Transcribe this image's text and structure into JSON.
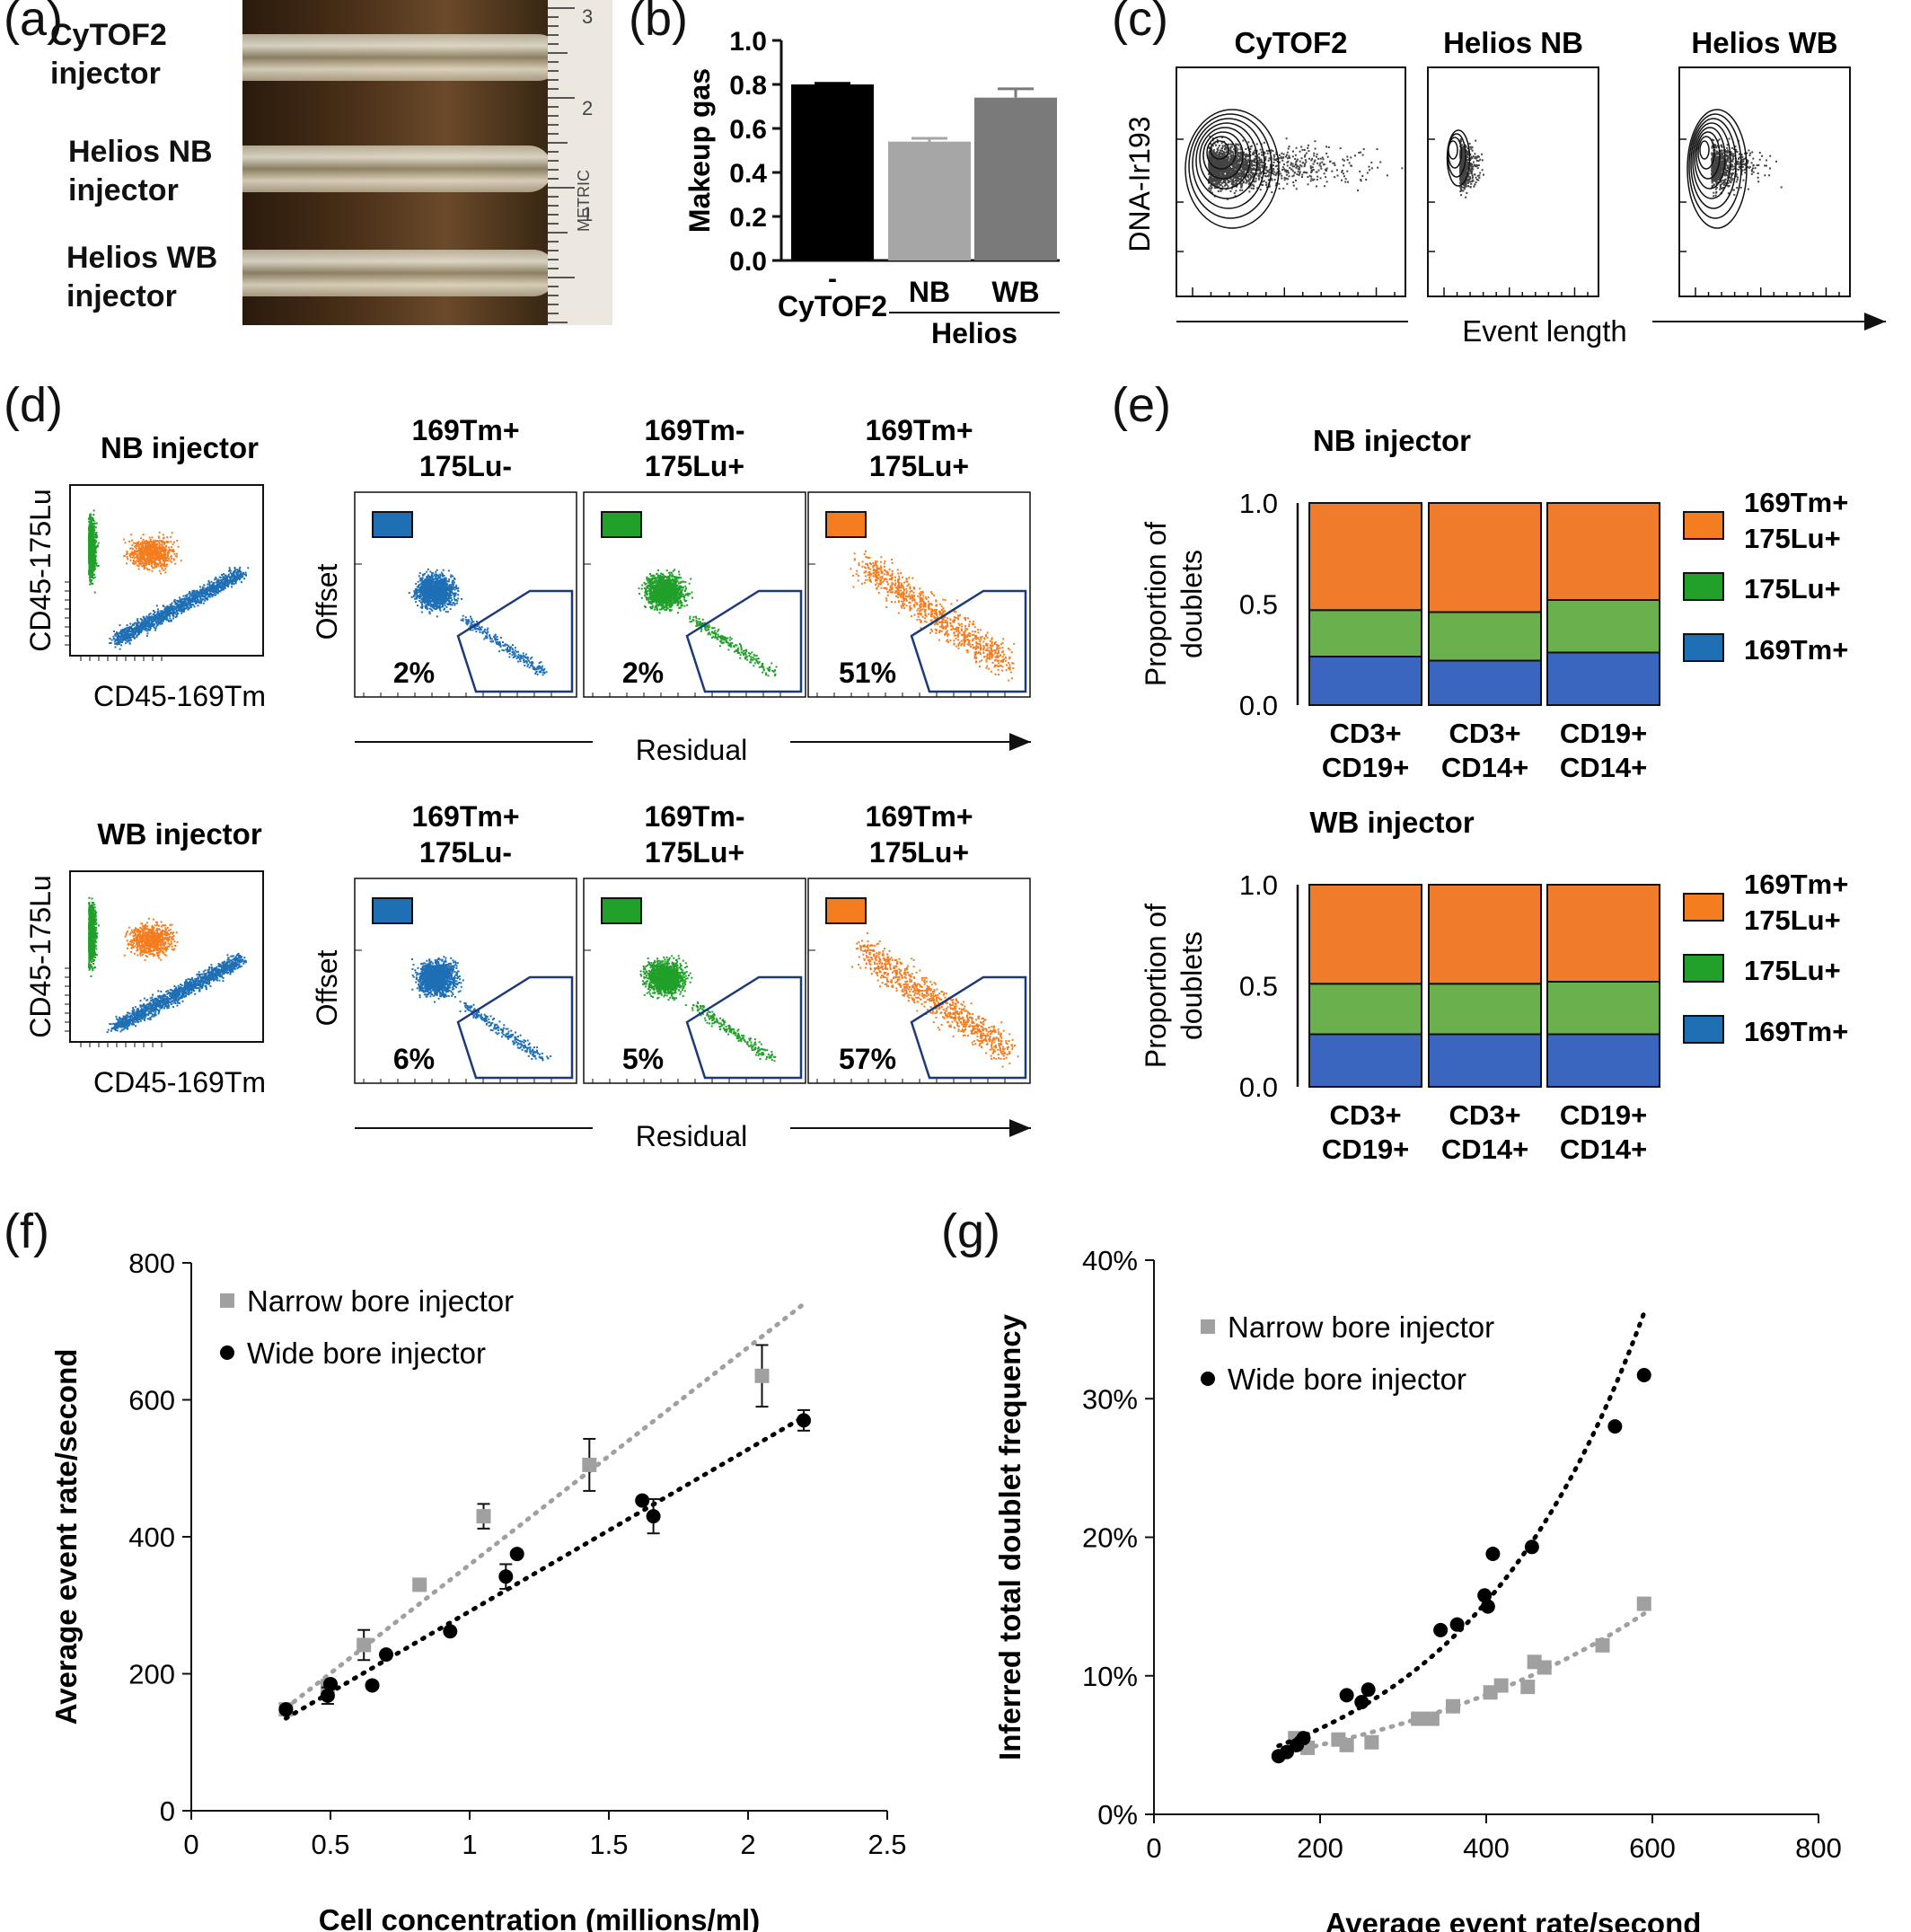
{
  "panels": {
    "a": {
      "letter": "(a)",
      "labels": [
        [
          "CyTOF2",
          "injector"
        ],
        [
          "Helios NB",
          "injector"
        ],
        [
          "Helios WB",
          "injector"
        ]
      ],
      "ruler_numbers": [
        "3",
        "2",
        "1"
      ],
      "ruler_text": "METRIC"
    },
    "b": {
      "letter": "(b)",
      "group_label": "Helios",
      "dash": "-"
    },
    "c": {
      "letter": "(c)",
      "titles": [
        "CyTOF2",
        "Helios NB",
        "Helios WB"
      ],
      "ylabel": "DNA-Ir193",
      "xlabel": "Event length"
    },
    "d": {
      "letter": "(d)",
      "rows": [
        {
          "title": "NB injector",
          "ylabel": "CD45-175Lu",
          "xlabel": "CD45-169Tm",
          "gate_titles": [
            [
              "169Tm+",
              "175Lu-"
            ],
            [
              "169Tm-",
              "175Lu+"
            ],
            [
              "169Tm+",
              "175Lu+"
            ]
          ],
          "percents": [
            "2%",
            "2%",
            "51%"
          ],
          "offset_label": "Offset",
          "residual_label": "Residual"
        },
        {
          "title": "WB injector",
          "ylabel": "CD45-175Lu",
          "xlabel": "CD45-169Tm",
          "gate_titles": [
            [
              "169Tm+",
              "175Lu-"
            ],
            [
              "169Tm-",
              "175Lu+"
            ],
            [
              "169Tm+",
              "175Lu+"
            ]
          ],
          "percents": [
            "6%",
            "5%",
            "57%"
          ],
          "offset_label": "Offset",
          "residual_label": "Residual"
        }
      ],
      "colors": {
        "blue": "#1f6fb5",
        "green": "#21a02a",
        "orange": "#f47d20"
      }
    },
    "e": {
      "letter": "(e)"
    },
    "f": {
      "letter": "(f)"
    },
    "g": {
      "letter": "(g)"
    }
  },
  "chart_data": [
    {
      "id": "b",
      "type": "bar",
      "ylabel": "Makeup gas",
      "ylim": [
        0,
        1.0
      ],
      "yticks": [
        "0.0",
        "0.2",
        "0.4",
        "0.6",
        "0.8",
        "1.0"
      ],
      "categories": [
        "CyTOF2",
        "NB",
        "WB"
      ],
      "values": [
        0.8,
        0.54,
        0.74
      ],
      "errors": [
        0.005,
        0.015,
        0.04
      ],
      "colors": [
        "#000000",
        "#a6a6a6",
        "#7a7a7a"
      ]
    },
    {
      "id": "e_nb",
      "type": "bar",
      "title": "NB injector",
      "ylabel": "Proportion of doublets",
      "ylim": [
        0,
        1.0
      ],
      "yticks": [
        "0.0",
        "0.5",
        "1.0"
      ],
      "categories": [
        [
          "CD3+",
          "CD19+"
        ],
        [
          "CD3+",
          "CD14+"
        ],
        [
          "CD19+",
          "CD14+"
        ]
      ],
      "series": [
        {
          "name": "169Tm+",
          "values": [
            0.24,
            0.22,
            0.26
          ],
          "color": "#3a66c0"
        },
        {
          "name": "175Lu+",
          "values": [
            0.23,
            0.24,
            0.26
          ],
          "color": "#6ab04c"
        },
        {
          "name": "169Tm+ 175Lu+",
          "values": [
            0.53,
            0.54,
            0.48
          ],
          "color": "#f07b2a"
        }
      ],
      "legend": [
        [
          "169Tm+",
          "175Lu+"
        ],
        [
          "175Lu+"
        ],
        [
          "169Tm+"
        ]
      ]
    },
    {
      "id": "e_wb",
      "type": "bar",
      "title": "WB injector",
      "ylabel": "Proportion of doublets",
      "ylim": [
        0,
        1.0
      ],
      "yticks": [
        "0.0",
        "0.5",
        "1.0"
      ],
      "categories": [
        [
          "CD3+",
          "CD19+"
        ],
        [
          "CD3+",
          "CD14+"
        ],
        [
          "CD19+",
          "CD14+"
        ]
      ],
      "series": [
        {
          "name": "169Tm+",
          "values": [
            0.26,
            0.26,
            0.26
          ],
          "color": "#3a66c0"
        },
        {
          "name": "175Lu+",
          "values": [
            0.25,
            0.25,
            0.26
          ],
          "color": "#6ab04c"
        },
        {
          "name": "169Tm+ 175Lu+",
          "values": [
            0.49,
            0.49,
            0.48
          ],
          "color": "#f07b2a"
        }
      ],
      "legend": [
        [
          "169Tm+",
          "175Lu+"
        ],
        [
          "175Lu+"
        ],
        [
          "169Tm+"
        ]
      ]
    },
    {
      "id": "f",
      "type": "scatter",
      "xlabel": "Cell concentration (millions/ml)",
      "ylabel": "Average event rate/second",
      "xlim": [
        0,
        2.5
      ],
      "ylim": [
        0,
        800
      ],
      "xticks": [
        "0",
        "0.5",
        "1",
        "1.5",
        "2",
        "2.5"
      ],
      "yticks": [
        "0",
        "200",
        "400",
        "600",
        "800"
      ],
      "series": [
        {
          "name": "Narrow bore injector",
          "marker": "square",
          "color": "#a0a0a0",
          "x": [
            0.34,
            0.49,
            0.62,
            0.82,
            1.05,
            1.43,
            2.05
          ],
          "y": [
            148,
            182,
            242,
            330,
            430,
            505,
            635
          ],
          "err": [
            0,
            0,
            22,
            0,
            18,
            38,
            45
          ],
          "trend": [
            [
              0.34,
              150
            ],
            [
              2.2,
              740
            ]
          ]
        },
        {
          "name": "Wide bore injector",
          "marker": "circle",
          "color": "#000000",
          "x": [
            0.34,
            0.49,
            0.5,
            0.65,
            0.7,
            0.93,
            1.13,
            1.17,
            1.62,
            1.66,
            2.2
          ],
          "y": [
            148,
            168,
            185,
            183,
            228,
            262,
            342,
            375,
            453,
            430,
            570
          ],
          "err": [
            0,
            12,
            0,
            0,
            0,
            0,
            18,
            0,
            0,
            25,
            15
          ],
          "trend": [
            [
              0.34,
              135
            ],
            [
              2.2,
              575
            ]
          ]
        }
      ]
    },
    {
      "id": "g",
      "type": "scatter",
      "xlabel": "Average event rate/second",
      "ylabel": "Inferred total doublet frequency",
      "xlim": [
        0,
        800
      ],
      "ylim": [
        0,
        40
      ],
      "xticks": [
        "0",
        "200",
        "400",
        "600",
        "800"
      ],
      "yticks": [
        "0%",
        "10%",
        "20%",
        "30%",
        "40%"
      ],
      "series": [
        {
          "name": "Narrow bore injector",
          "marker": "square",
          "color": "#a0a0a0",
          "x": [
            170,
            185,
            222,
            232,
            262,
            318,
            335,
            360,
            405,
            418,
            450,
            458,
            470,
            540,
            590
          ],
          "y": [
            5.5,
            4.8,
            5.4,
            5.0,
            5.2,
            6.9,
            6.9,
            7.8,
            8.8,
            9.3,
            9.2,
            11.0,
            10.6,
            12.2,
            15.2
          ],
          "trend": "curve"
        },
        {
          "name": "Wide bore injector",
          "marker": "circle",
          "color": "#000000",
          "x": [
            150,
            160,
            172,
            180,
            232,
            250,
            258,
            345,
            365,
            398,
            402,
            408,
            455,
            555,
            590
          ],
          "y": [
            4.2,
            4.5,
            5.0,
            5.5,
            8.6,
            8.1,
            9.0,
            13.3,
            13.7,
            15.8,
            15.0,
            18.8,
            19.3,
            28.0,
            31.7
          ],
          "trend": "curve"
        }
      ]
    }
  ]
}
